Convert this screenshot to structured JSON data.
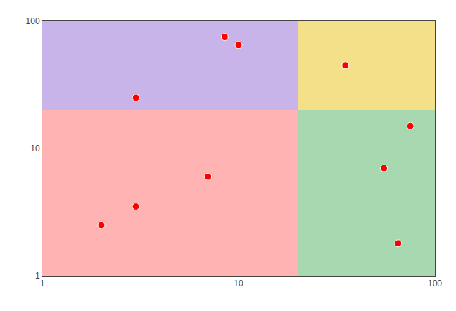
{
  "chart_data": {
    "type": "scatter",
    "x": [
      2.0,
      3.0,
      7.0,
      3.0,
      8.5,
      10.0,
      35.0,
      65.0,
      55.0,
      75.0
    ],
    "values": [
      2.5,
      3.5,
      6.0,
      25.0,
      75.0,
      65.0,
      45.0,
      1.8,
      7.0,
      15.0
    ],
    "color": "#ff0000",
    "marker": "circle",
    "log": true,
    "xlim": [
      1,
      100
    ],
    "ylim": [
      1,
      100
    ],
    "xticks": [
      1,
      10,
      100
    ],
    "yticks": [
      1,
      10,
      100
    ],
    "grid": true,
    "quadrants": [
      {
        "x": [
          1,
          20
        ],
        "y": [
          1,
          20
        ],
        "color": "#ffb3b3"
      },
      {
        "x": [
          1,
          20
        ],
        "y": [
          20,
          100
        ],
        "color": "#c8b4e8"
      },
      {
        "x": [
          20,
          100
        ],
        "y": [
          20,
          100
        ],
        "color": "#f5e08a"
      },
      {
        "x": [
          20,
          100
        ],
        "y": [
          1,
          20
        ],
        "color": "#a8d8b0"
      }
    ]
  }
}
